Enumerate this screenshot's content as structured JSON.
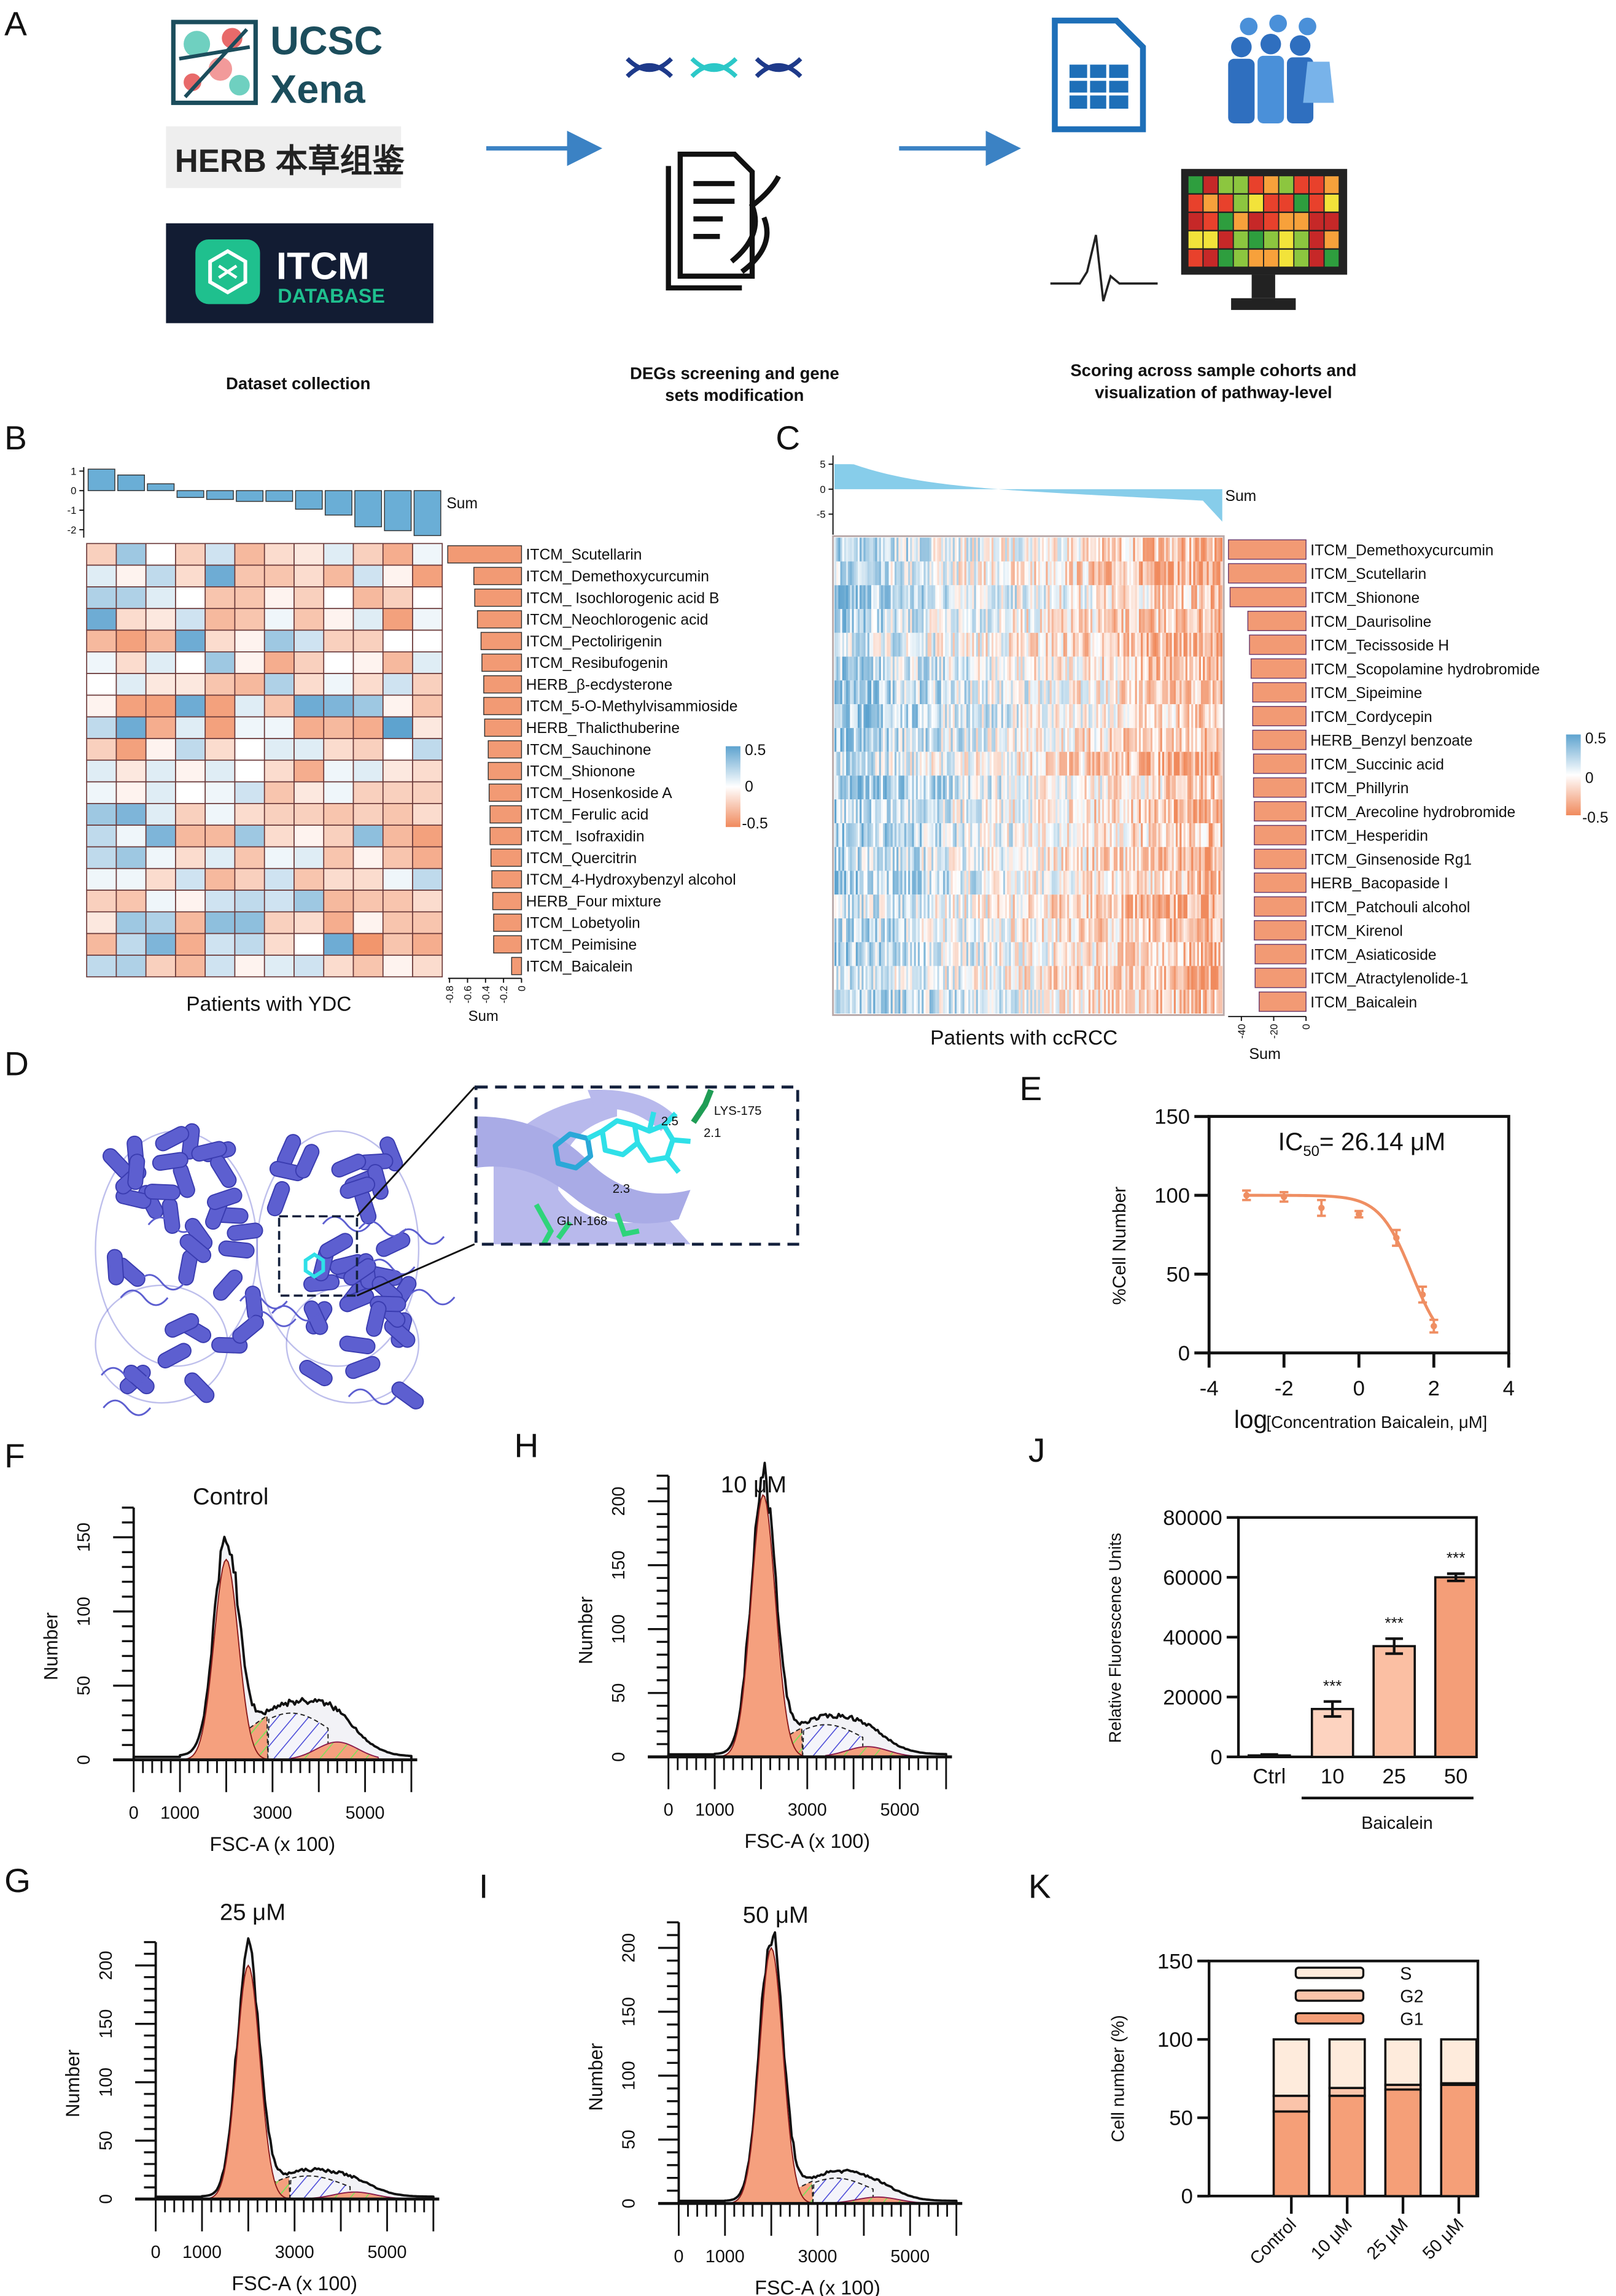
{
  "panel_labels": {
    "A": "A",
    "B": "B",
    "C": "C",
    "D": "D",
    "E": "E",
    "F": "F",
    "G": "G",
    "H": "H",
    "I": "I",
    "J": "J",
    "K": "K"
  },
  "panelA": {
    "logos": {
      "ucsc_line1": "UCSC",
      "ucsc_line2": "Xena",
      "herb": "HERB 本草组鉴",
      "itcm": "ITCM",
      "itcm_sub": "DATABASE"
    },
    "captions": {
      "step1": "Dataset collection",
      "step2_line1": "DEGs screening and gene",
      "step2_line2": "sets modification",
      "step3_line1": "Scoring across sample cohorts and",
      "step3_line2": "visualization of pathway-level"
    }
  },
  "colors": {
    "blue": "#5ea3cf",
    "orange": "#f08a5d",
    "bar_orange": "#f29a74",
    "sum_blue": "#6aaed6",
    "ccrcc_blue": "#87cdea",
    "protein": "#5d5fd0",
    "ligand": "#2fe0e8",
    "residue": "#2ed47a"
  },
  "chart_data": [
    {
      "id": "B",
      "type": "heatmap",
      "xlabel": "Patients with YDC",
      "top_label": "Sum",
      "right_axis_label": "Sum",
      "top_ticks": [
        "1",
        "0",
        "-1",
        "-2"
      ],
      "top_sum": [
        1.1,
        0.8,
        0.35,
        -0.35,
        -0.45,
        -0.55,
        -0.55,
        -0.95,
        -1.25,
        -1.85,
        -2.05,
        -2.3
      ],
      "right_ticks": [
        "-0.8",
        "-0.6",
        "-0.4",
        "-0.2",
        "0"
      ],
      "legend": [
        "0.5",
        "0",
        "-0.5"
      ],
      "rows": [
        {
          "label": "ITCM_Scutellarin",
          "sum": -0.82,
          "values": [
            -0.2,
            0.3,
            0,
            -0.2,
            0.15,
            -0.3,
            -0.15,
            -0.1,
            0.1,
            -0.2,
            -0.35,
            0.05
          ]
        },
        {
          "label": "ITCM_Demethoxycurcumin",
          "sum": -0.53,
          "values": [
            0.1,
            -0.05,
            0.2,
            -0.15,
            0.45,
            -0.25,
            -0.25,
            -0.15,
            -0.3,
            0.15,
            -0.05,
            -0.4
          ]
        },
        {
          "label": "ITCM_ Isochlorogenic acid B",
          "sum": -0.52,
          "values": [
            0.25,
            0.25,
            0.1,
            0,
            -0.25,
            -0.25,
            -0.05,
            -0.2,
            0,
            -0.3,
            -0.2,
            0
          ]
        },
        {
          "label": "ITCM_Neochlorogenic acid",
          "sum": -0.49,
          "values": [
            0.45,
            -0.15,
            -0.1,
            0.15,
            -0.3,
            -0.25,
            0.05,
            -0.25,
            -0.05,
            0.1,
            -0.4,
            0.05
          ]
        },
        {
          "label": "ITCM_Pectolirigenin",
          "sum": -0.45,
          "values": [
            -0.3,
            -0.4,
            -0.3,
            0.45,
            -0.15,
            -0.05,
            0.3,
            0.15,
            -0.2,
            -0.2,
            0,
            0
          ]
        },
        {
          "label": "ITCM_Resibufogenin",
          "sum": -0.44,
          "values": [
            0.05,
            -0.15,
            0.1,
            0,
            0.3,
            -0.05,
            -0.35,
            -0.2,
            0,
            -0.05,
            -0.3,
            0.1
          ]
        },
        {
          "label": "HERB_β-ecdysterone",
          "sum": -0.42,
          "values": [
            0,
            0.1,
            -0.1,
            -0.1,
            -0.25,
            -0.3,
            0.25,
            -0.15,
            0.05,
            -0.15,
            0.15,
            -0.2
          ]
        },
        {
          "label": "ITCM_5-O-Methylvisammioside",
          "sum": -0.42,
          "values": [
            -0.05,
            -0.4,
            -0.4,
            0.45,
            -0.4,
            0.1,
            -0.25,
            0.45,
            0.4,
            0.3,
            -0.05,
            -0.25
          ]
        },
        {
          "label": "HERB_Thalicthuberine",
          "sum": -0.41,
          "values": [
            0.2,
            0.45,
            -0.35,
            0.1,
            -0.4,
            0.05,
            0.05,
            -0.35,
            -0.3,
            -0.35,
            0.5,
            -0.1
          ]
        },
        {
          "label": "ITCM_Sauchinone",
          "sum": -0.37,
          "values": [
            -0.2,
            -0.4,
            -0.05,
            0.2,
            -0.15,
            0,
            0.1,
            0.1,
            -0.15,
            -0.2,
            0,
            0.2
          ]
        },
        {
          "label": "ITCM_Shionone",
          "sum": -0.37,
          "values": [
            0.1,
            -0.1,
            0.1,
            -0.05,
            0.1,
            0,
            -0.15,
            -0.35,
            0.05,
            0.1,
            -0.1,
            -0.15
          ]
        },
        {
          "label": "ITCM_Hosenkoside A",
          "sum": -0.36,
          "values": [
            0.05,
            -0.05,
            0.1,
            0,
            0.05,
            0.15,
            -0.25,
            -0.1,
            0.05,
            -0.2,
            -0.2,
            -0.2
          ]
        },
        {
          "label": "ITCM_Ferulic acid",
          "sum": -0.35,
          "values": [
            0.3,
            0.4,
            0.1,
            -0.2,
            0.05,
            -0.15,
            -0.2,
            -0.2,
            -0.25,
            -0.2,
            -0.25,
            -0.15
          ]
        },
        {
          "label": "ITCM_ Isofraxidin",
          "sum": -0.35,
          "values": [
            0.2,
            0.05,
            0.4,
            -0.3,
            -0.3,
            0.3,
            -0.15,
            -0.05,
            -0.2,
            0.35,
            -0.3,
            -0.4
          ]
        },
        {
          "label": "ITCM_Quercitrin",
          "sum": -0.34,
          "values": [
            0.2,
            0.3,
            0.05,
            -0.15,
            0.1,
            -0.25,
            0.05,
            0.1,
            -0.25,
            -0.05,
            -0.25,
            -0.35
          ]
        },
        {
          "label": "ITCM_4-Hydroxybenzyl alcohol",
          "sum": -0.33,
          "values": [
            0.05,
            0.05,
            -0.15,
            0.15,
            -0.3,
            -0.2,
            0.15,
            -0.25,
            -0.15,
            -0.15,
            0.05,
            0.2
          ]
        },
        {
          "label": "HERB_Four mixture",
          "sum": -0.32,
          "values": [
            -0.2,
            -0.25,
            0.05,
            -0.05,
            0.15,
            0.2,
            0.15,
            0.3,
            -0.3,
            -0.25,
            -0.25,
            -0.15
          ]
        },
        {
          "label": "ITCM_Lobetyolin",
          "sum": -0.31,
          "values": [
            -0.1,
            0.3,
            0.25,
            -0.3,
            0.35,
            0.35,
            -0.2,
            -0.15,
            -0.35,
            -0.05,
            -0.25,
            -0.25
          ]
        },
        {
          "label": "ITCM_Peimisine",
          "sum": -0.31,
          "values": [
            -0.3,
            0.2,
            0.4,
            -0.35,
            0.15,
            0.2,
            -0.15,
            0,
            0.45,
            -0.45,
            -0.25,
            -0.35
          ]
        },
        {
          "label": "ITCM_Baicalein",
          "sum": -0.11,
          "values": [
            0.2,
            0.25,
            -0.2,
            -0.3,
            0.15,
            -0.05,
            0.1,
            0.15,
            -0.15,
            -0.25,
            -0.05,
            -0.15
          ]
        }
      ]
    },
    {
      "id": "C",
      "type": "heatmap",
      "xlabel": "Patients with ccRCC",
      "top_label": "Sum",
      "right_axis_label": "Sum",
      "top_ticks": [
        "5",
        "0",
        "-5"
      ],
      "top_sum_range": [
        5,
        -9
      ],
      "right_ticks": [
        "-40",
        "-20",
        "0"
      ],
      "legend": [
        "0.5",
        "0",
        "-0.5"
      ],
      "rows": [
        {
          "label": "ITCM_Demethoxycurcumin",
          "sum": -48
        },
        {
          "label": "ITCM_Scutellarin",
          "sum": -48
        },
        {
          "label": "ITCM_Shionone",
          "sum": -47
        },
        {
          "label": "ITCM_Daurisoline",
          "sum": -36
        },
        {
          "label": "ITCM_Tecissoside H",
          "sum": -35
        },
        {
          "label": "ITCM_Scopolamine hydrobromide",
          "sum": -34
        },
        {
          "label": "ITCM_Sipeimine",
          "sum": -33
        },
        {
          "label": "ITCM_Cordycepin",
          "sum": -33
        },
        {
          "label": "HERB_Benzyl benzoate",
          "sum": -33
        },
        {
          "label": "ITCM_Succinic acid",
          "sum": -32.5
        },
        {
          "label": "ITCM_Phillyrin",
          "sum": -32.5
        },
        {
          "label": "ITCM_Arecoline hydrobromide",
          "sum": -32
        },
        {
          "label": "ITCM_Hesperidin",
          "sum": -32
        },
        {
          "label": "ITCM_Ginsenoside Rg1",
          "sum": -32
        },
        {
          "label": "HERB_Bacopaside I",
          "sum": -32
        },
        {
          "label": "ITCM_Patchouli alcohol",
          "sum": -32
        },
        {
          "label": "ITCM_Kirenol",
          "sum": -32
        },
        {
          "label": "ITCM_Asiaticoside",
          "sum": -31.5
        },
        {
          "label": "ITCM_Atractylenolide-1",
          "sum": -31.5
        },
        {
          "label": "ITCM_Baicalein",
          "sum": -29
        }
      ]
    },
    {
      "id": "E",
      "type": "line",
      "annotation_prefix": "IC",
      "annotation_sub": "50",
      "annotation_value": "= 26.14 μM",
      "xlabel_log": "log",
      "xlabel": "[Concentration Baicalein, μM]",
      "ylabel": "%Cell Number",
      "xlim": [
        -4,
        4
      ],
      "ylim": [
        0,
        150
      ],
      "xticks": [
        "-4",
        "-2",
        "0",
        "2",
        "4"
      ],
      "yticks": [
        "0",
        "50",
        "100",
        "150"
      ],
      "x": [
        -3,
        -2,
        -1,
        0,
        1,
        1.7,
        2
      ],
      "y": [
        100,
        99,
        92,
        88,
        73,
        37,
        17
      ],
      "err": [
        3,
        3,
        5,
        2,
        5,
        5,
        4
      ],
      "fit": {
        "top": 100,
        "bottom": 0,
        "logIC50": 1.417,
        "hill": 1
      }
    },
    {
      "id": "F",
      "type": "area",
      "title": "Control",
      "ylabel": "Number",
      "xlabel": "FSC-A   (x 100)",
      "xticks": [
        "0",
        "1000",
        "3000",
        "5000"
      ],
      "yticks": [
        "0",
        "50",
        "100",
        "150"
      ],
      "xmax": 6000,
      "components": {
        "G1": {
          "mu": 2000,
          "sigma": 260,
          "amp": 135
        },
        "S": {
          "mu": 3400,
          "sigma": 900,
          "amp": 35
        },
        "G2": {
          "mu": 4400,
          "sigma": 450,
          "amp": 12
        }
      }
    },
    {
      "id": "H",
      "type": "area",
      "title": "10 μM",
      "ylabel": "Number",
      "xlabel": "FSC-A   (x 100)",
      "xticks": [
        "0",
        "1000",
        "3000",
        "5000"
      ],
      "yticks": [
        "0",
        "50",
        "100",
        "150",
        "200"
      ],
      "xmax": 6000,
      "components": {
        "G1": {
          "mu": 2050,
          "sigma": 260,
          "amp": 205
        },
        "S": {
          "mu": 3400,
          "sigma": 800,
          "amp": 28
        },
        "G2": {
          "mu": 4300,
          "sigma": 450,
          "amp": 8
        }
      }
    },
    {
      "id": "G",
      "type": "area",
      "title": "25 μM",
      "ylabel": "Number",
      "xlabel": "FSC-A   (x 100)",
      "xticks": [
        "0",
        "1000",
        "3000",
        "5000"
      ],
      "yticks": [
        "0",
        "50",
        "100",
        "150",
        "200"
      ],
      "xmax": 6000,
      "components": {
        "G1": {
          "mu": 2000,
          "sigma": 250,
          "amp": 200
        },
        "S": {
          "mu": 3300,
          "sigma": 800,
          "amp": 22
        },
        "G2": {
          "mu": 4300,
          "sigma": 450,
          "amp": 6
        }
      }
    },
    {
      "id": "I",
      "type": "area",
      "title": "50 μM",
      "ylabel": "Number",
      "xlabel": "FSC-A   (x 100)",
      "xticks": [
        "0",
        "1000",
        "3000",
        "5000"
      ],
      "yticks": [
        "0",
        "50",
        "100",
        "150",
        "200"
      ],
      "xmax": 6000,
      "components": {
        "G1": {
          "mu": 2000,
          "sigma": 250,
          "amp": 200
        },
        "S": {
          "mu": 3400,
          "sigma": 750,
          "amp": 22
        },
        "G2": {
          "mu": 4300,
          "sigma": 450,
          "amp": 5
        }
      }
    },
    {
      "id": "J",
      "type": "bar",
      "ylabel": "Relative Fluorescence Units",
      "group_label": "Baicalein",
      "categories": [
        "Ctrl",
        "10",
        "25",
        "50"
      ],
      "values": [
        500,
        16000,
        37000,
        60000
      ],
      "err": [
        300,
        2500,
        2500,
        1200
      ],
      "significance": [
        "",
        "***",
        "***",
        "***"
      ],
      "ylim": [
        0,
        80000
      ],
      "yticks": [
        "0",
        "20000",
        "40000",
        "60000",
        "80000"
      ],
      "bar_colors": [
        "#f7c9b3",
        "#fdd3c0",
        "#fbbfa3",
        "#f49e78"
      ]
    },
    {
      "id": "K",
      "type": "bar",
      "stacked": true,
      "ylabel": "Cell number (%)",
      "categories": [
        "Control",
        "10 μM",
        "25 μM",
        "50 μM"
      ],
      "ylim": [
        0,
        150
      ],
      "yticks": [
        "0",
        "50",
        "100",
        "150"
      ],
      "series": [
        {
          "name": "G1",
          "values": [
            54,
            64,
            68,
            71
          ],
          "color": "#f59f78"
        },
        {
          "name": "G2",
          "values": [
            10,
            5,
            3,
            1
          ],
          "color": "#fbc4aa"
        },
        {
          "name": "S",
          "values": [
            36,
            31,
            29,
            28
          ],
          "color": "#feebdc"
        }
      ],
      "legend_order": [
        "S",
        "G2",
        "G1"
      ]
    }
  ],
  "panelD": {
    "residue1": "LYS-175",
    "residue2": "GLN-168",
    "distances": [
      "2.5",
      "2.1",
      "2.3"
    ]
  }
}
